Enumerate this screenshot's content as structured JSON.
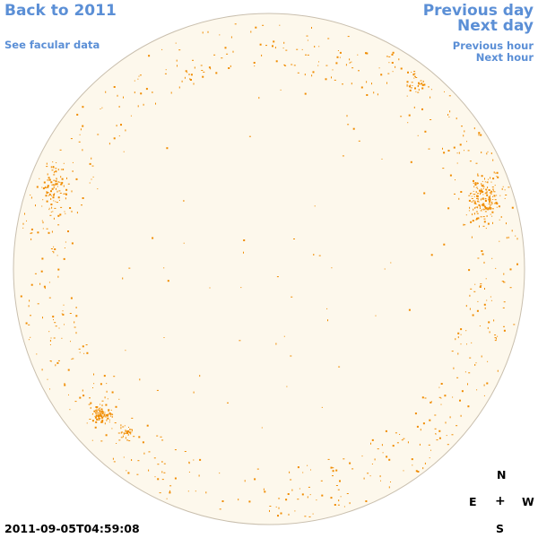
{
  "nav": {
    "back_label": "Back to 2011",
    "facular_label": "See facular data",
    "prev_day_label": "Previous day",
    "next_day_label": "Next day",
    "prev_hour_label": "Previous hour",
    "next_hour_label": "Next hour"
  },
  "timestamp": "2011-09-05T04:59:08",
  "compass": {
    "north": "N",
    "east": "E",
    "center": "+",
    "west": "W",
    "south": "S"
  },
  "colors": {
    "link": "#5b8fd6",
    "disk_fill": "#fdf8ec",
    "disk_edge": "#c9bfae",
    "active_region": "#f08c00",
    "text": "#000000"
  }
}
